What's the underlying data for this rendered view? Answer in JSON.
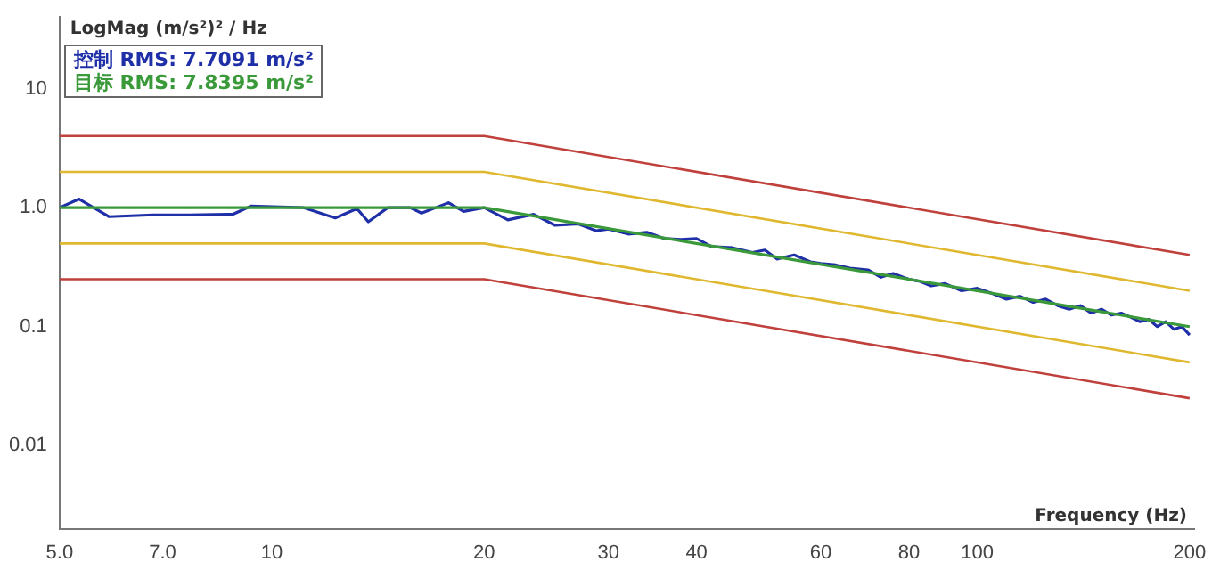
{
  "chart_data": {
    "type": "line",
    "xlabel": "Frequency (Hz)",
    "ylabel": "LogMag (m/s²)² / Hz",
    "log": "xy",
    "grid": false,
    "legend": "top left",
    "marker": "none",
    "line_style": "solid",
    "xlim": [
      5,
      203
    ],
    "xticks": [
      {
        "value": 5,
        "label": "5.0"
      },
      {
        "value": 7,
        "label": "7.0"
      },
      10,
      20,
      30,
      40,
      60,
      80,
      100,
      200
    ],
    "ylim": [
      0.002,
      40
    ],
    "yticks": [
      {
        "value": 0.01,
        "label": "0.01"
      },
      {
        "value": 0.1,
        "label": "0.1"
      },
      {
        "value": 1,
        "label": "1.0"
      },
      {
        "value": 10,
        "label": "10"
      }
    ],
    "series": [
      {
        "color": "#c0403c",
        "x": [
          5,
          20,
          200
        ],
        "values": [
          4,
          4,
          0.4
        ]
      },
      {
        "color": "#e0b830",
        "x": [
          5,
          20,
          200
        ],
        "values": [
          2,
          2,
          0.2
        ]
      },
      {
        "color": "#e0b830",
        "x": [
          5,
          20,
          200
        ],
        "values": [
          0.5,
          0.5,
          0.05
        ]
      },
      {
        "color": "#c0403c",
        "x": [
          5,
          20,
          200
        ],
        "values": [
          0.25,
          0.25,
          0.025
        ]
      },
      {
        "name": "目标  RMS: 7.8395 m/s²",
        "color": "#3a9a3a",
        "x": [
          5,
          20,
          200
        ],
        "values": [
          1,
          1,
          0.1
        ]
      },
      {
        "name": "控制 RMS: 7.7091 m/s²",
        "color": "#1f2fa8",
        "x": [
          5,
          5.33,
          5.88,
          6.79,
          7.63,
          8.81,
          9.33,
          11.1,
          12.3,
          13.2,
          13.7,
          14.6,
          15.7,
          16.3,
          17.8,
          18.7,
          20,
          21.6,
          23.5,
          25.2,
          27.2,
          28.8,
          30,
          32,
          34,
          36,
          38,
          40,
          42,
          45,
          48,
          50,
          52,
          55,
          58,
          60,
          63,
          66,
          70,
          73,
          76,
          80,
          83,
          86,
          90,
          95,
          100,
          105,
          110,
          115,
          120,
          125,
          130,
          135,
          140,
          145,
          150,
          155,
          160,
          165,
          170,
          175,
          180,
          185,
          190,
          195,
          200
        ],
        "values": [
          1,
          1.18,
          0.84,
          0.87,
          0.87,
          0.88,
          1.03,
          1,
          0.82,
          0.98,
          0.76,
          1,
          1,
          0.9,
          1.1,
          0.93,
          1,
          0.79,
          0.88,
          0.71,
          0.73,
          0.64,
          0.66,
          0.6,
          0.62,
          0.55,
          0.54,
          0.55,
          0.47,
          0.46,
          0.42,
          0.44,
          0.37,
          0.4,
          0.35,
          0.34,
          0.33,
          0.31,
          0.3,
          0.26,
          0.28,
          0.25,
          0.24,
          0.22,
          0.23,
          0.2,
          0.21,
          0.19,
          0.17,
          0.18,
          0.16,
          0.17,
          0.15,
          0.14,
          0.15,
          0.13,
          0.14,
          0.125,
          0.13,
          0.12,
          0.11,
          0.115,
          0.1,
          0.11,
          0.095,
          0.1,
          0.085
        ]
      }
    ]
  }
}
